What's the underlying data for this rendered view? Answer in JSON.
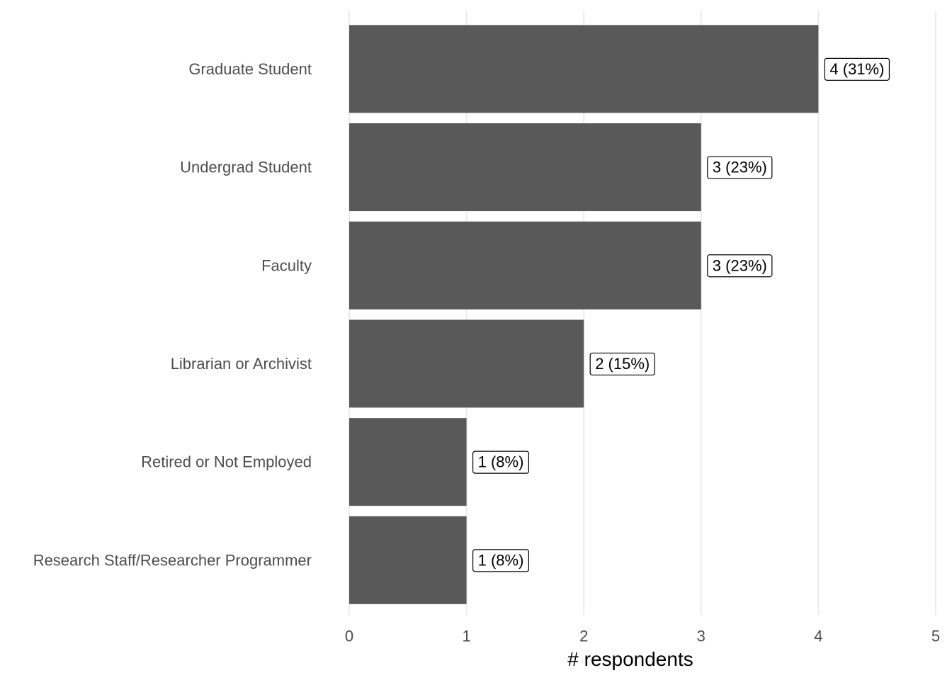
{
  "chart_data": {
    "type": "bar",
    "orientation": "horizontal",
    "categories": [
      "Graduate Student",
      "Undergrad Student",
      "Faculty",
      "Librarian or Archivist",
      "Retired or Not Employed",
      "Research Staff/Researcher Programmer"
    ],
    "values": [
      4,
      3,
      3,
      2,
      1,
      1
    ],
    "data_labels": [
      "4 (31%)",
      "3 (23%)",
      "3 (23%)",
      "2 (15%)",
      "1 (8%)",
      "1 (8%)"
    ],
    "xlabel": "# respondents",
    "ylabel": "",
    "xlim": [
      0,
      5
    ],
    "x_ticks": [
      0,
      1,
      2,
      3,
      4,
      5
    ],
    "grid": "vertical major",
    "legend": "none",
    "colors": {
      "bar": "#595959",
      "grid": "#ebebeb",
      "label_text": "#4d4d4d"
    }
  }
}
